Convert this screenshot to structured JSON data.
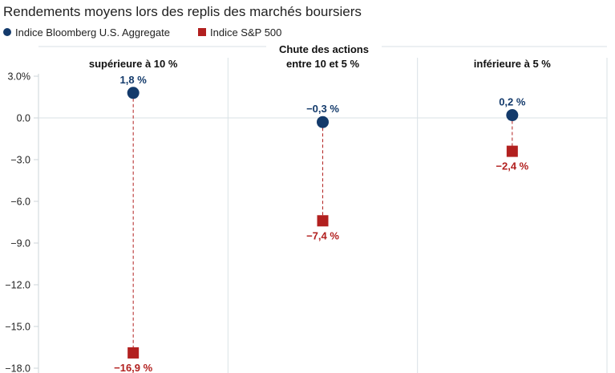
{
  "colors": {
    "bond": "#133a6b",
    "equity": "#b2201f",
    "grid": "#d9e2e6",
    "axis": "#cdd6da"
  },
  "chart_data": {
    "type": "scatter",
    "title": "Rendements moyens lors des replis des marchés boursiers",
    "group_title": "Chute des actions",
    "categories": [
      "supérieure à 10 %",
      "entre 10 et 5 %",
      "inférieure à 5 %"
    ],
    "series": [
      {
        "name": "Indice Bloomberg U.S. Aggregate",
        "marker": "circle",
        "values": [
          1.8,
          -0.3,
          0.2
        ],
        "labels": [
          "1,8 %",
          "−0,3 %",
          "0,2 %"
        ]
      },
      {
        "name": "Indice S&P 500",
        "marker": "square",
        "values": [
          -16.9,
          -7.4,
          -2.4
        ],
        "labels": [
          "−16,9 %",
          "−7,4 %",
          "−2,4 %"
        ]
      }
    ],
    "ylim": [
      -18,
      3
    ],
    "yticks": [
      3,
      0,
      -3,
      -6,
      -9,
      -12,
      -15,
      -18
    ],
    "ytick_labels": [
      "3.0%",
      "0.0",
      "−3.0",
      "−6.0",
      "−9.0",
      "−12.0",
      "−15.0",
      "−18.0"
    ],
    "legend_position": "top-left",
    "grid": true
  }
}
